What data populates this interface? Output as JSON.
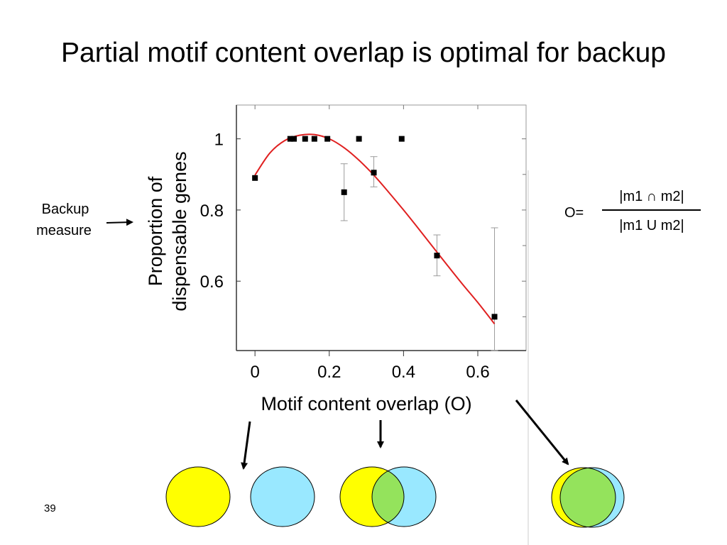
{
  "slide": {
    "title": "Partial motif content overlap is optimal for backup",
    "number": "39"
  },
  "annotation": {
    "line1": "Backup",
    "line2": "measure"
  },
  "formula": {
    "lhs": "O=",
    "numerator": "|m1 ∩ m2|",
    "denominator": "|m1 U m2|"
  },
  "colors": {
    "fit_line": "#e02020",
    "marker": "#000000",
    "errorbar": "#9a9a9a",
    "circle_yellow": "#ffff00",
    "circle_blue": "#99e8ff",
    "circle_overlap": "#94e35c"
  },
  "venn_icons": [
    "no-overlap-venn",
    "partial-overlap-venn",
    "full-overlap-venn"
  ],
  "chart_data": {
    "type": "scatter",
    "xlabel": "Motif content overlap (O)",
    "ylabel_lines": [
      "Proportion of",
      "dispensable genes"
    ],
    "xlim": [
      -0.05,
      0.73
    ],
    "ylim": [
      0.405,
      1.095
    ],
    "x_ticks": [
      0,
      0.2,
      0.4,
      0.6
    ],
    "x_tick_labels": [
      "0",
      "0.2",
      "0.4",
      "0.6"
    ],
    "y_ticks": [
      0.6,
      0.8,
      1.0
    ],
    "y_tick_labels": [
      "0.6",
      "0.8",
      "1"
    ],
    "grid": false,
    "points": [
      {
        "x": 0.0,
        "y": 0.89
      },
      {
        "x": 0.095,
        "y": 1.0
      },
      {
        "x": 0.105,
        "y": 1.0
      },
      {
        "x": 0.135,
        "y": 1.0
      },
      {
        "x": 0.16,
        "y": 1.0
      },
      {
        "x": 0.195,
        "y": 1.0
      },
      {
        "x": 0.24,
        "y": 0.85,
        "err_low": 0.77,
        "err_high": 0.93
      },
      {
        "x": 0.28,
        "y": 1.0
      },
      {
        "x": 0.32,
        "y": 0.905,
        "err_low": 0.865,
        "err_high": 0.95
      },
      {
        "x": 0.395,
        "y": 1.0
      },
      {
        "x": 0.49,
        "y": 0.672,
        "err_low": 0.615,
        "err_high": 0.73
      },
      {
        "x": 0.645,
        "y": 0.5,
        "err_low": 0.405,
        "err_high": 0.75
      }
    ],
    "fit_curve": {
      "x": [
        0.0,
        0.04,
        0.08,
        0.12,
        0.16,
        0.2,
        0.24,
        0.28,
        0.32,
        0.36,
        0.4,
        0.44,
        0.48,
        0.52,
        0.56,
        0.6,
        0.645
      ],
      "y": [
        0.898,
        0.96,
        0.995,
        1.01,
        1.012,
        1.0,
        0.975,
        0.94,
        0.898,
        0.85,
        0.8,
        0.748,
        0.695,
        0.642,
        0.59,
        0.54,
        0.48
      ]
    }
  }
}
